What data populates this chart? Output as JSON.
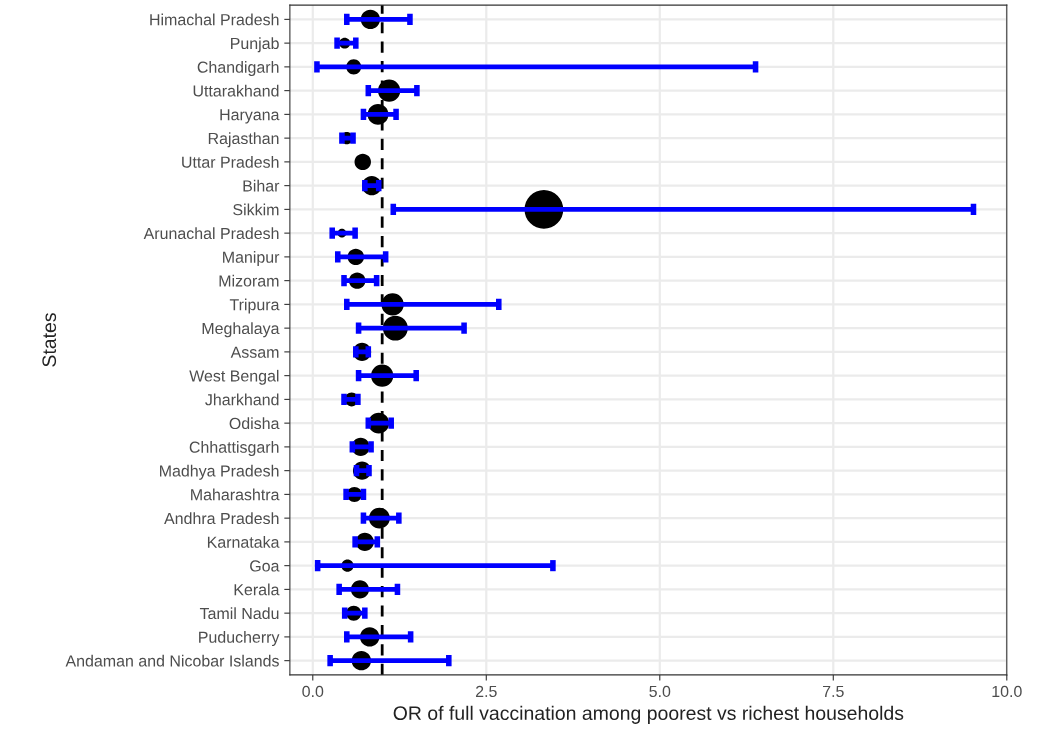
{
  "chart_data": {
    "type": "bubble",
    "orientation": "horizontal",
    "xlabel": "OR of full vaccination among poorest vs richest households",
    "ylabel": "States",
    "categories": [
      "Himachal Pradesh",
      "Punjab",
      "Chandigarh",
      "Uttarakhand",
      "Haryana",
      "Rajasthan",
      "Uttar Pradesh",
      "Bihar",
      "Sikkim",
      "Arunachal Pradesh",
      "Manipur",
      "Mizoram",
      "Tripura",
      "Meghalaya",
      "Assam",
      "West Bengal",
      "Jharkhand",
      "Odisha",
      "Chhattisgarh",
      "Madhya Pradesh",
      "Maharashtra",
      "Andhra Pradesh",
      "Karnataka",
      "Goa",
      "Kerala",
      "Tamil Nadu",
      "Puducherry",
      "Andaman and Nicobar Islands"
    ],
    "series": [
      {
        "color": "#000000",
        "values": [
          0.83,
          0.46,
          0.59,
          1.1,
          0.94,
          0.49,
          0.72,
          0.85,
          3.33,
          0.42,
          0.62,
          0.64,
          1.15,
          1.19,
          0.71,
          1.0,
          0.56,
          0.95,
          0.69,
          0.71,
          0.6,
          0.96,
          0.75,
          0.5,
          0.68,
          0.59,
          0.82,
          0.7
        ],
        "errors": [
          [
            0.49,
            1.4
          ],
          [
            0.35,
            0.62
          ],
          [
            0.06,
            6.38
          ],
          [
            0.8,
            1.5
          ],
          [
            0.73,
            1.2
          ],
          [
            0.42,
            0.58
          ],
          null,
          [
            0.75,
            0.95
          ],
          [
            1.16,
            9.52
          ],
          [
            0.28,
            0.61
          ],
          [
            0.36,
            1.05
          ],
          [
            0.45,
            0.92
          ],
          [
            0.49,
            2.68
          ],
          [
            0.66,
            2.18
          ],
          [
            0.62,
            0.8
          ],
          [
            0.66,
            1.49
          ],
          [
            0.45,
            0.65
          ],
          [
            0.8,
            1.13
          ],
          [
            0.57,
            0.84
          ],
          [
            0.63,
            0.81
          ],
          [
            0.48,
            0.73
          ],
          [
            0.73,
            1.24
          ],
          [
            0.61,
            0.93
          ],
          [
            0.07,
            3.46
          ],
          [
            0.38,
            1.22
          ],
          [
            0.46,
            0.75
          ],
          [
            0.49,
            1.41
          ],
          [
            0.25,
            1.96
          ]
        ],
        "sizes": [
          0.25,
          0.08,
          0.15,
          0.33,
          0.29,
          0.1,
          0.18,
          0.25,
          1,
          0.05,
          0.18,
          0.18,
          0.33,
          0.41,
          0.22,
          0.33,
          0.13,
          0.29,
          0.22,
          0.22,
          0.15,
          0.29,
          0.22,
          0.1,
          0.22,
          0.15,
          0.25,
          0.25
        ]
      }
    ],
    "xlim": [
      -0.33,
      10.0
    ],
    "xticks": [
      {
        "value": 0,
        "label": "0.0"
      },
      {
        "value": 2.5,
        "label": "2.5"
      },
      {
        "value": 5,
        "label": "5.0"
      },
      {
        "value": 7.5,
        "label": "7.5"
      },
      {
        "value": 10,
        "label": "10.0"
      }
    ],
    "ref_lines": [
      {
        "axis": "x",
        "value": 1,
        "color": "#000000",
        "line_style": "dashed"
      }
    ],
    "grid": true
  }
}
